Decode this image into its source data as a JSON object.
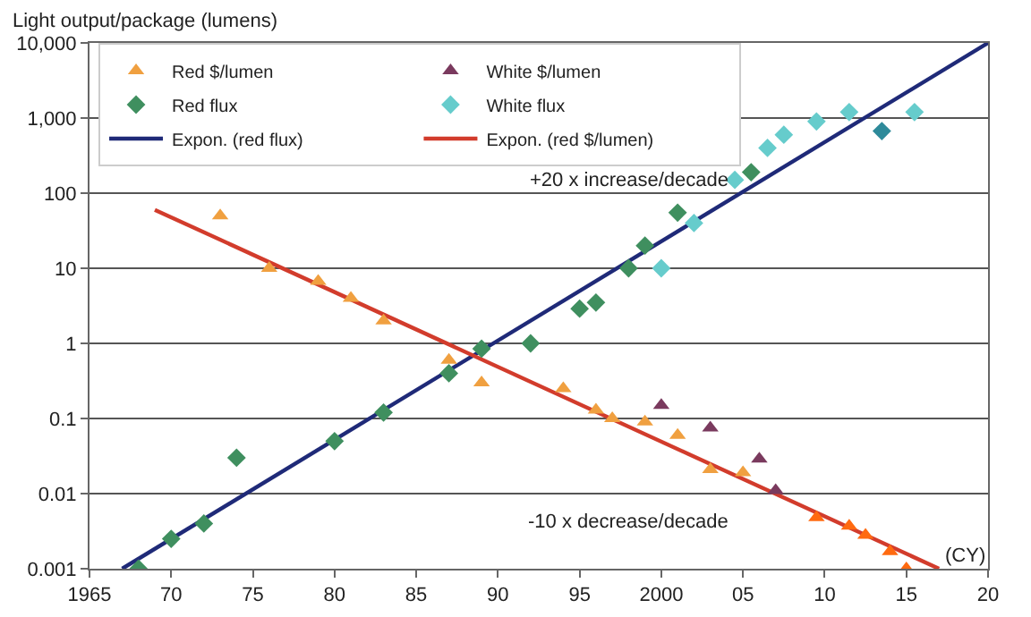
{
  "chart_data": {
    "type": "scatter",
    "ylabel": "Light output/package (lumens)",
    "xlabel": "(CY)",
    "annotations": [
      "+20 x increase/decade",
      "-10 x decrease/decade"
    ],
    "log": "y",
    "grid": "y",
    "legend": "top",
    "xlim": [
      1965,
      2020
    ],
    "xticks": [
      1965,
      {
        "value": 1970,
        "label": "70"
      },
      {
        "value": 1975,
        "label": "75"
      },
      {
        "value": 1980,
        "label": "80"
      },
      {
        "value": 1985,
        "label": "85"
      },
      {
        "value": 1990,
        "label": "90"
      },
      {
        "value": 1995,
        "label": "95"
      },
      2000,
      {
        "value": 2005,
        "label": "05"
      },
      {
        "value": 2010,
        "label": "10"
      },
      {
        "value": 2015,
        "label": "15"
      },
      {
        "value": 2020,
        "label": "20"
      }
    ],
    "ylim": [
      0.001,
      10000
    ],
    "yticks": [
      0.001,
      0.01,
      0.1,
      1,
      10,
      100,
      {
        "value": 1000,
        "label": "1,000"
      },
      {
        "value": 10000,
        "label": "10,000"
      }
    ],
    "series": [
      {
        "name": "Red $/lumen",
        "marker": "triangle",
        "color": "#f0a040",
        "x": [
          1973,
          1976,
          1979,
          1981,
          1983,
          1987,
          1989,
          1994,
          1996,
          1997,
          1999,
          2001,
          2003,
          2005,
          2009.5,
          2011.5,
          2012.5,
          2014,
          2015
        ],
        "values": [
          50,
          10,
          6.7,
          4,
          2,
          0.6,
          0.3,
          0.25,
          0.13,
          0.1,
          0.09,
          0.06,
          0.021,
          0.019,
          0.0048,
          0.0037,
          0.0028,
          0.0017,
          0.001
        ],
        "colors": [
          null,
          null,
          null,
          null,
          null,
          null,
          null,
          null,
          null,
          null,
          null,
          null,
          null,
          null,
          "#ff6a10",
          "#ff6a10",
          "#ff6a10",
          "#ff6a10",
          "#ff6a10"
        ]
      },
      {
        "name": "White $/lumen",
        "marker": "triangle",
        "color": "#7a3a5e",
        "x": [
          2000,
          2003,
          2006,
          2007
        ],
        "values": [
          0.15,
          0.075,
          0.029,
          0.011
        ]
      },
      {
        "name": "Red flux",
        "marker": "diamond",
        "color": "#3f8f5f",
        "x": [
          1968,
          1970,
          1972,
          1974,
          1980,
          1983,
          1987,
          1989,
          1992,
          1995,
          1996,
          1998,
          1999,
          2001,
          2005.5
        ],
        "values": [
          0.001,
          0.0025,
          0.004,
          0.03,
          0.05,
          0.12,
          0.4,
          0.85,
          1,
          2.9,
          3.5,
          10,
          20,
          55,
          190
        ]
      },
      {
        "name": "White flux",
        "marker": "diamond",
        "color": "#66cccc",
        "x": [
          2000,
          2002,
          2004.5,
          2006.5,
          2007.5,
          2009.5,
          2011.5,
          2013.5,
          2015.5
        ],
        "values": [
          10,
          40,
          150,
          400,
          600,
          900,
          1200,
          670,
          1200
        ],
        "colors": [
          null,
          null,
          null,
          null,
          null,
          null,
          null,
          "#2e8a9a",
          null
        ]
      },
      {
        "name": "Expon. (red flux)",
        "type": "line",
        "marker": "none",
        "line_style": "solid",
        "color": "#1f2a78",
        "x": [
          1967,
          2020
        ],
        "values": [
          0.001,
          10000
        ]
      },
      {
        "name": "Expon. (red $/lumen)",
        "type": "line",
        "marker": "none",
        "line_style": "solid",
        "color": "#d23c2c",
        "x": [
          1969,
          2017
        ],
        "values": [
          60,
          0.001
        ]
      }
    ]
  }
}
